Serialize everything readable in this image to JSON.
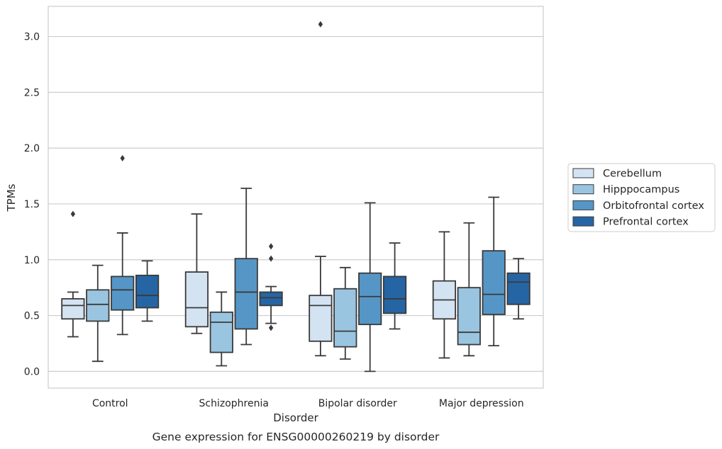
{
  "chart_data": {
    "type": "box",
    "caption": "Gene expression for ENSG00000260219 by disorder",
    "xlabel": "Disorder",
    "ylabel": "TPMs",
    "ylim": [
      -0.15,
      3.27
    ],
    "yticks": [
      "0.0",
      "0.5",
      "1.0",
      "1.5",
      "2.0",
      "2.5",
      "3.0"
    ],
    "grid": "horizontal",
    "legend_position": "right",
    "categories": [
      "Control",
      "Schizophrenia",
      "Bipolar disorder",
      "Major depression"
    ],
    "series": [
      {
        "name": "Cerebellum",
        "color": "#d4e3f2",
        "boxes": [
          {
            "whislo": 0.31,
            "q1": 0.47,
            "med": 0.59,
            "q3": 0.65,
            "whishi": 0.71,
            "fliers": [
              1.41
            ]
          },
          {
            "whislo": 0.34,
            "q1": 0.4,
            "med": 0.57,
            "q3": 0.89,
            "whishi": 1.41,
            "fliers": []
          },
          {
            "whislo": 0.14,
            "q1": 0.27,
            "med": 0.59,
            "q3": 0.68,
            "whishi": 1.03,
            "fliers": [
              3.11
            ]
          },
          {
            "whislo": 0.12,
            "q1": 0.47,
            "med": 0.64,
            "q3": 0.81,
            "whishi": 1.25,
            "fliers": []
          }
        ]
      },
      {
        "name": "Hipppocampus",
        "color": "#9ac5e0",
        "boxes": [
          {
            "whislo": 0.09,
            "q1": 0.45,
            "med": 0.6,
            "q3": 0.73,
            "whishi": 0.95,
            "fliers": []
          },
          {
            "whislo": 0.05,
            "q1": 0.17,
            "med": 0.44,
            "q3": 0.53,
            "whishi": 0.71,
            "fliers": []
          },
          {
            "whislo": 0.11,
            "q1": 0.22,
            "med": 0.36,
            "q3": 0.74,
            "whishi": 0.93,
            "fliers": []
          },
          {
            "whislo": 0.14,
            "q1": 0.24,
            "med": 0.35,
            "q3": 0.75,
            "whishi": 1.33,
            "fliers": []
          }
        ]
      },
      {
        "name": "Orbitofrontal cortex",
        "color": "#5596c7",
        "boxes": [
          {
            "whislo": 0.33,
            "q1": 0.55,
            "med": 0.73,
            "q3": 0.85,
            "whishi": 1.24,
            "fliers": [
              1.91
            ]
          },
          {
            "whislo": 0.24,
            "q1": 0.38,
            "med": 0.71,
            "q3": 1.01,
            "whishi": 1.64,
            "fliers": []
          },
          {
            "whislo": 0.0,
            "q1": 0.42,
            "med": 0.67,
            "q3": 0.88,
            "whishi": 1.51,
            "fliers": []
          },
          {
            "whislo": 0.23,
            "q1": 0.51,
            "med": 0.69,
            "q3": 1.08,
            "whishi": 1.56,
            "fliers": []
          }
        ]
      },
      {
        "name": "Prefrontal cortex",
        "color": "#2565a4",
        "boxes": [
          {
            "whislo": 0.45,
            "q1": 0.57,
            "med": 0.68,
            "q3": 0.86,
            "whishi": 0.99,
            "fliers": []
          },
          {
            "whislo": 0.43,
            "q1": 0.59,
            "med": 0.66,
            "q3": 0.71,
            "whishi": 0.76,
            "fliers": [
              1.12,
              1.01,
              0.39
            ]
          },
          {
            "whislo": 0.38,
            "q1": 0.52,
            "med": 0.65,
            "q3": 0.85,
            "whishi": 1.15,
            "fliers": []
          },
          {
            "whislo": 0.47,
            "q1": 0.6,
            "med": 0.8,
            "q3": 0.88,
            "whishi": 1.01,
            "fliers": []
          }
        ]
      }
    ]
  }
}
